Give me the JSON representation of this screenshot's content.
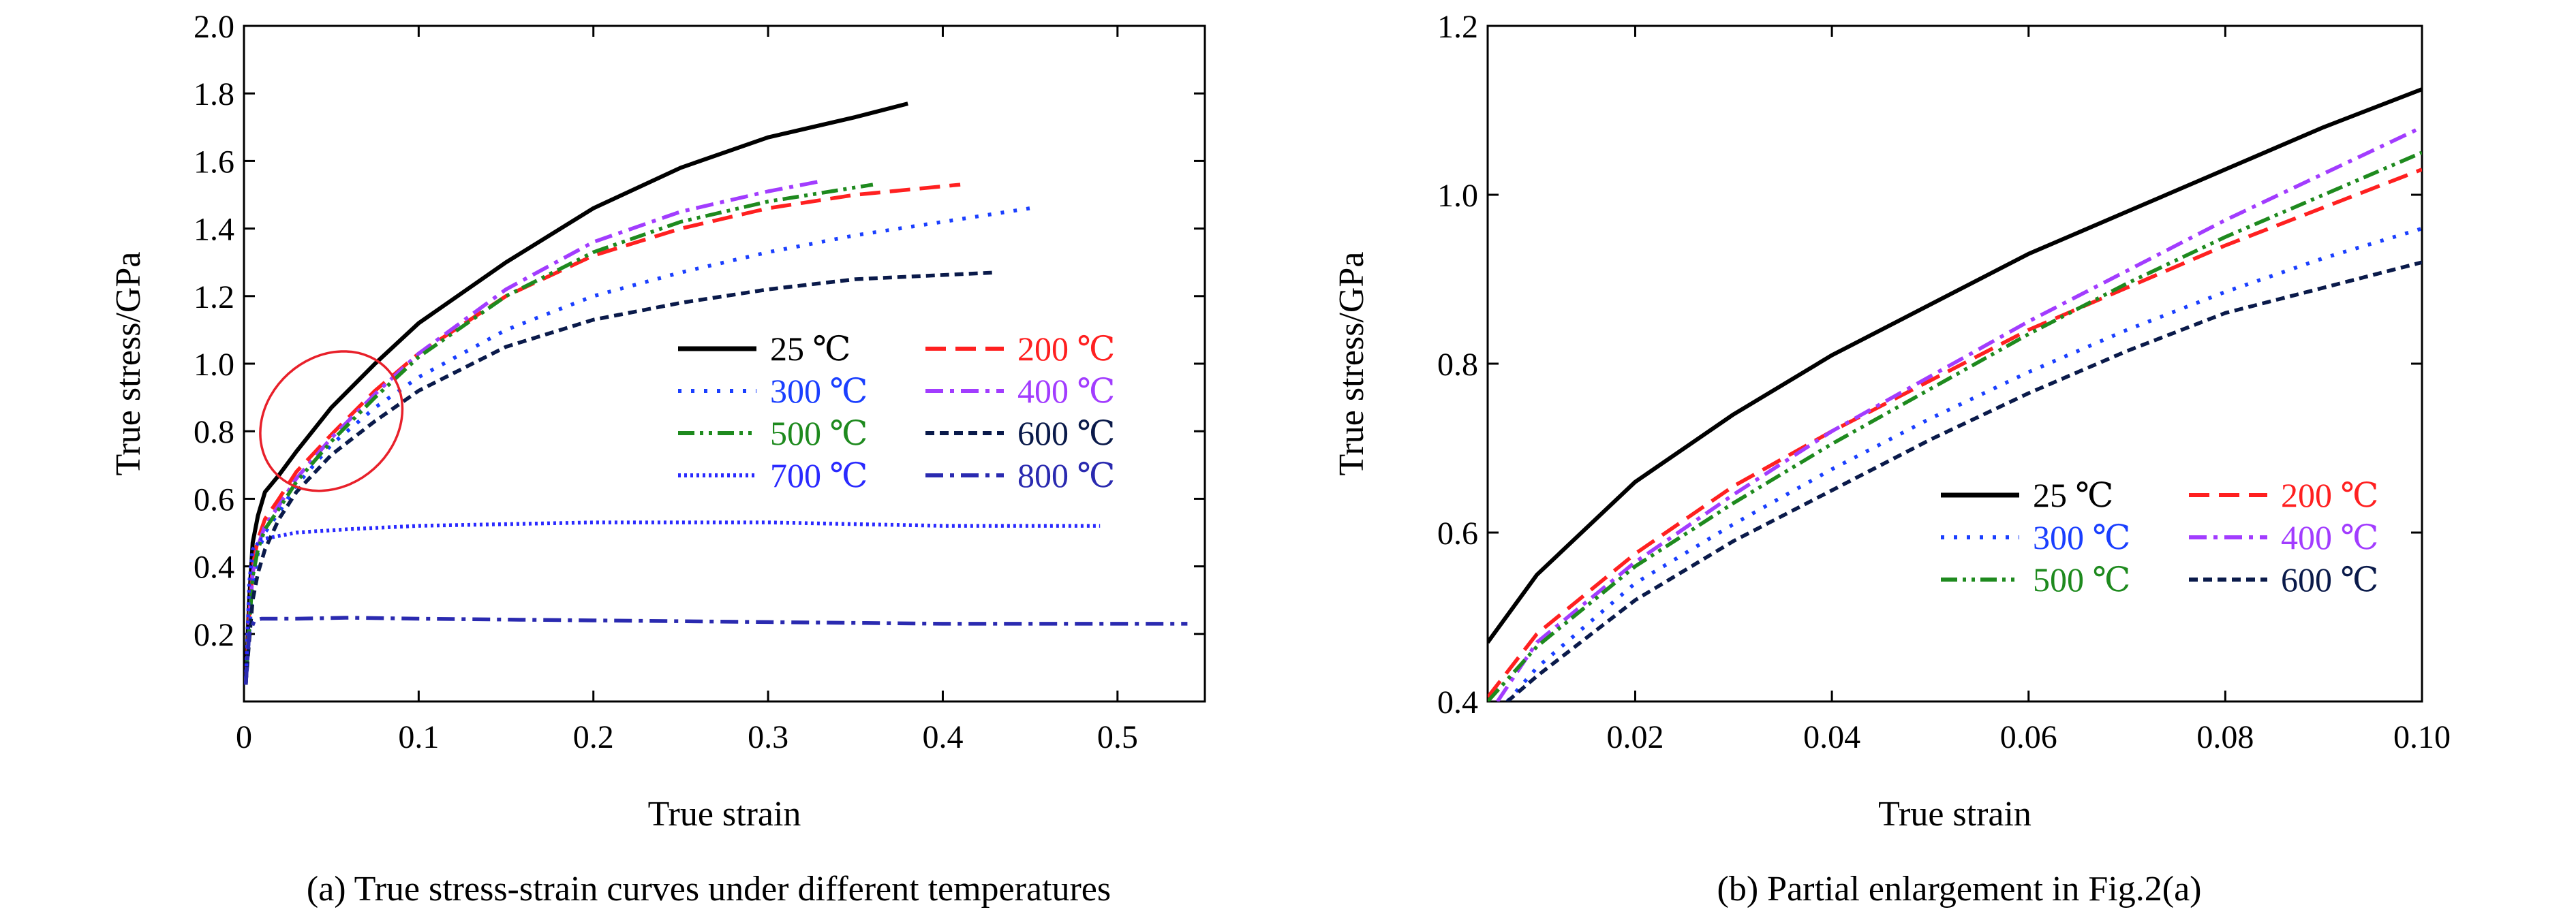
{
  "figure": {
    "caption_a": "(a) True stress-strain curves under different temperatures",
    "caption_b": "(b) Partial enlargement in Fig.2(a)"
  },
  "chart_data": [
    {
      "type": "line",
      "id": "a",
      "xlabel": "True strain",
      "ylabel": "True stress/GPa",
      "xlim": [
        0,
        0.55
      ],
      "ylim": [
        0,
        2.0
      ],
      "xticks": [
        "0",
        "0.1",
        "0.2",
        "0.3",
        "0.4",
        "0.5"
      ],
      "xtick_values": [
        0,
        0.1,
        0.2,
        0.3,
        0.4,
        0.5
      ],
      "yticks": [
        "0.2",
        "0.4",
        "0.6",
        "0.8",
        "1.0",
        "1.2",
        "1.4",
        "1.6",
        "1.8",
        "2.0"
      ],
      "ytick_values": [
        0.2,
        0.4,
        0.6,
        0.8,
        1.0,
        1.2,
        1.4,
        1.6,
        1.8,
        2.0
      ],
      "legend_position": "center-right, two columns",
      "annotation": "red ellipse around strain 0.01-0.09, stress 0.6-1.05",
      "series": [
        {
          "name": "25 ℃",
          "color": "#000000",
          "style": "solid",
          "x": [
            0.001,
            0.003,
            0.005,
            0.008,
            0.012,
            0.02,
            0.03,
            0.05,
            0.075,
            0.1,
            0.15,
            0.2,
            0.25,
            0.3,
            0.35,
            0.38
          ],
          "y": [
            0.05,
            0.3,
            0.47,
            0.55,
            0.62,
            0.67,
            0.74,
            0.87,
            1.0,
            1.12,
            1.3,
            1.46,
            1.58,
            1.67,
            1.73,
            1.77
          ]
        },
        {
          "name": "200 ℃",
          "color": "#ff2020",
          "style": "dash",
          "x": [
            0.001,
            0.003,
            0.005,
            0.008,
            0.012,
            0.02,
            0.03,
            0.05,
            0.075,
            0.1,
            0.15,
            0.2,
            0.25,
            0.3,
            0.35,
            0.41
          ],
          "y": [
            0.05,
            0.25,
            0.4,
            0.48,
            0.54,
            0.6,
            0.68,
            0.79,
            0.92,
            1.03,
            1.2,
            1.32,
            1.4,
            1.46,
            1.5,
            1.53
          ]
        },
        {
          "name": "300 ℃",
          "color": "#1a3fff",
          "style": "dot",
          "x": [
            0.001,
            0.003,
            0.005,
            0.008,
            0.012,
            0.02,
            0.03,
            0.05,
            0.075,
            0.1,
            0.15,
            0.2,
            0.25,
            0.3,
            0.35,
            0.4,
            0.45
          ],
          "y": [
            0.05,
            0.2,
            0.34,
            0.44,
            0.5,
            0.56,
            0.64,
            0.76,
            0.87,
            0.96,
            1.1,
            1.2,
            1.27,
            1.33,
            1.38,
            1.42,
            1.46
          ]
        },
        {
          "name": "400 ℃",
          "color": "#a23cff",
          "style": "dashdot",
          "x": [
            0.001,
            0.003,
            0.005,
            0.008,
            0.012,
            0.02,
            0.03,
            0.05,
            0.075,
            0.1,
            0.15,
            0.2,
            0.25,
            0.3,
            0.33
          ],
          "y": [
            0.05,
            0.23,
            0.38,
            0.46,
            0.52,
            0.58,
            0.66,
            0.78,
            0.91,
            1.03,
            1.22,
            1.36,
            1.45,
            1.51,
            1.54
          ]
        },
        {
          "name": "500 ℃",
          "color": "#1e8a1e",
          "style": "dashdotdot",
          "x": [
            0.001,
            0.003,
            0.005,
            0.008,
            0.012,
            0.02,
            0.03,
            0.05,
            0.075,
            0.1,
            0.15,
            0.2,
            0.25,
            0.3,
            0.36
          ],
          "y": [
            0.05,
            0.22,
            0.37,
            0.45,
            0.51,
            0.57,
            0.65,
            0.77,
            0.9,
            1.02,
            1.2,
            1.33,
            1.42,
            1.48,
            1.53
          ]
        },
        {
          "name": "600 ℃",
          "color": "#0a1a4a",
          "style": "dash-short",
          "x": [
            0.001,
            0.003,
            0.005,
            0.008,
            0.012,
            0.02,
            0.03,
            0.05,
            0.075,
            0.1,
            0.15,
            0.2,
            0.25,
            0.3,
            0.35,
            0.43
          ],
          "y": [
            0.05,
            0.18,
            0.3,
            0.38,
            0.45,
            0.54,
            0.62,
            0.73,
            0.83,
            0.92,
            1.05,
            1.13,
            1.18,
            1.22,
            1.25,
            1.27
          ]
        },
        {
          "name": "700 ℃",
          "color": "#2a2aff",
          "style": "finedot",
          "x": [
            0.001,
            0.003,
            0.005,
            0.01,
            0.03,
            0.06,
            0.1,
            0.2,
            0.3,
            0.4,
            0.49
          ],
          "y": [
            0.05,
            0.35,
            0.45,
            0.48,
            0.5,
            0.51,
            0.52,
            0.53,
            0.53,
            0.52,
            0.52
          ]
        },
        {
          "name": "800 ℃",
          "color": "#2a2ab0",
          "style": "dashdot",
          "x": [
            0.001,
            0.003,
            0.006,
            0.01,
            0.03,
            0.06,
            0.1,
            0.2,
            0.3,
            0.4,
            0.54
          ],
          "y": [
            0.05,
            0.2,
            0.24,
            0.245,
            0.245,
            0.248,
            0.245,
            0.24,
            0.235,
            0.23,
            0.23
          ]
        }
      ]
    },
    {
      "type": "line",
      "id": "b",
      "xlabel": "True strain",
      "ylabel": "True stress/GPa",
      "xlim": [
        0.005,
        0.1
      ],
      "ylim": [
        0.4,
        1.2
      ],
      "xticks": [
        "0.02",
        "0.04",
        "0.06",
        "0.08",
        "0.10"
      ],
      "xtick_values": [
        0.02,
        0.04,
        0.06,
        0.08,
        0.1
      ],
      "yticks": [
        "0.4",
        "0.6",
        "0.8",
        "1.0",
        "1.2"
      ],
      "ytick_values": [
        0.4,
        0.6,
        0.8,
        1.0,
        1.2
      ],
      "legend_position": "lower-right, two columns",
      "series": [
        {
          "name": "25 ℃",
          "color": "#000000",
          "style": "solid",
          "x": [
            0.005,
            0.01,
            0.02,
            0.03,
            0.04,
            0.05,
            0.06,
            0.07,
            0.08,
            0.09,
            0.1
          ],
          "y": [
            0.47,
            0.55,
            0.66,
            0.74,
            0.81,
            0.87,
            0.93,
            0.98,
            1.03,
            1.08,
            1.125
          ]
        },
        {
          "name": "200 ℃",
          "color": "#ff2020",
          "style": "dash",
          "x": [
            0.005,
            0.01,
            0.02,
            0.03,
            0.04,
            0.05,
            0.06,
            0.07,
            0.08,
            0.09,
            0.1
          ],
          "y": [
            0.405,
            0.48,
            0.575,
            0.655,
            0.72,
            0.78,
            0.84,
            0.89,
            0.94,
            0.985,
            1.03
          ]
        },
        {
          "name": "300 ℃",
          "color": "#1a3fff",
          "style": "dot",
          "x": [
            0.007,
            0.01,
            0.02,
            0.03,
            0.04,
            0.05,
            0.06,
            0.07,
            0.08,
            0.09,
            0.1
          ],
          "y": [
            0.4,
            0.44,
            0.54,
            0.61,
            0.675,
            0.735,
            0.79,
            0.84,
            0.885,
            0.925,
            0.96
          ]
        },
        {
          "name": "400 ℃",
          "color": "#a23cff",
          "style": "dashdot",
          "x": [
            0.006,
            0.01,
            0.02,
            0.03,
            0.04,
            0.05,
            0.06,
            0.07,
            0.08,
            0.09,
            0.1
          ],
          "y": [
            0.4,
            0.47,
            0.565,
            0.645,
            0.72,
            0.785,
            0.85,
            0.91,
            0.97,
            1.025,
            1.08
          ]
        },
        {
          "name": "500 ℃",
          "color": "#1e8a1e",
          "style": "dashdotdot",
          "x": [
            0.005,
            0.01,
            0.02,
            0.03,
            0.04,
            0.05,
            0.06,
            0.07,
            0.08,
            0.09,
            0.1
          ],
          "y": [
            0.4,
            0.465,
            0.56,
            0.635,
            0.705,
            0.77,
            0.835,
            0.895,
            0.95,
            1.0,
            1.05
          ]
        },
        {
          "name": "600 ℃",
          "color": "#0a1a4a",
          "style": "dash-short",
          "x": [
            0.007,
            0.01,
            0.02,
            0.03,
            0.04,
            0.05,
            0.06,
            0.07,
            0.08,
            0.09,
            0.1
          ],
          "y": [
            0.4,
            0.43,
            0.52,
            0.59,
            0.65,
            0.71,
            0.765,
            0.815,
            0.86,
            0.89,
            0.92
          ]
        }
      ]
    }
  ]
}
